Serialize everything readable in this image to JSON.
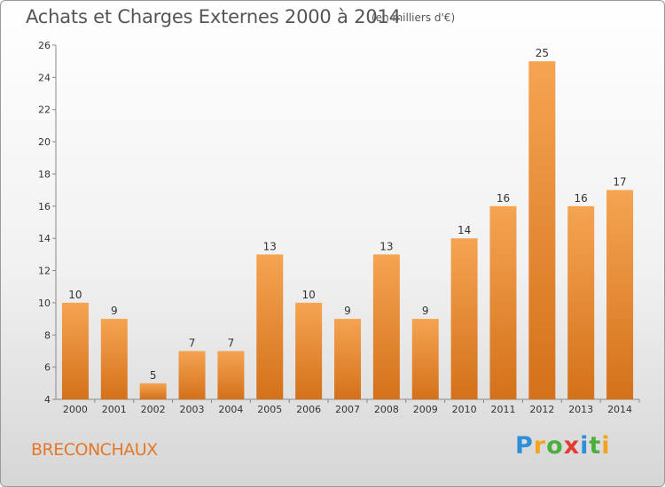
{
  "chart_data": {
    "type": "bar",
    "title": "Achats et Charges Externes 2000 à 2014",
    "subtitle": "(en milliers d'€)",
    "categories": [
      "2000",
      "2001",
      "2002",
      "2003",
      "2004",
      "2005",
      "2006",
      "2007",
      "2008",
      "2009",
      "2010",
      "2011",
      "2012",
      "2013",
      "2014"
    ],
    "values": [
      10,
      9,
      5,
      7,
      7,
      13,
      10,
      9,
      13,
      9,
      14,
      16,
      25,
      16,
      17
    ],
    "ylim": [
      4,
      26
    ],
    "yticks": [
      4,
      6,
      8,
      10,
      12,
      14,
      16,
      18,
      20,
      22,
      24,
      26
    ],
    "grid": false,
    "bar_color": "#f0953f",
    "bar_color_dark": "#d97418"
  },
  "town": "BRECONCHAUX",
  "logo": {
    "letters": [
      "P",
      "r",
      "o",
      "x",
      "i",
      "t",
      "i"
    ],
    "colors": [
      "#2e8fd6",
      "#f2a41c",
      "#4cae3c",
      "#e23b2f",
      "#2e8fd6",
      "#4cae3c",
      "#f2a41c"
    ]
  }
}
